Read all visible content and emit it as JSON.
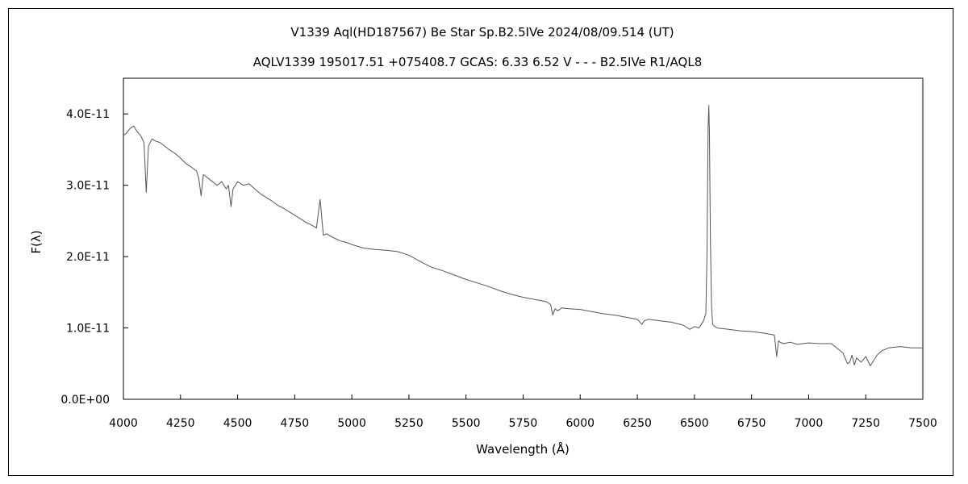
{
  "chart_data": {
    "type": "line",
    "title": "V1339 Aql(HD187567)    Be Star    Sp.B2.5IVe    2024/08/09.514 (UT)",
    "subtitle": "AQLV1339 195017.51 +075408.7 GCAS: 6.33 6.52 V - - - B2.5IVe R1/AQL8",
    "xlabel": "Wavelength (Å)",
    "ylabel": "F(λ)",
    "xlim": [
      4000,
      7500
    ],
    "ylim": [
      0,
      4.5e-11
    ],
    "x_ticks": [
      4000,
      4250,
      4500,
      4750,
      5000,
      5250,
      5500,
      5750,
      6000,
      6250,
      6500,
      6750,
      7000,
      7250,
      7500
    ],
    "x_tick_labels": [
      "4000",
      "4250",
      "4500",
      "4750",
      "5000",
      "5250",
      "5500",
      "5750",
      "6000",
      "6250",
      "6500",
      "6750",
      "7000",
      "7250",
      "7500"
    ],
    "y_ticks": [
      0,
      1e-11,
      2e-11,
      3e-11,
      4e-11
    ],
    "y_tick_labels": [
      "0.0E+00",
      "1.0E-11",
      "2.0E-11",
      "3.0E-11",
      "4.0E-11"
    ],
    "grid": false,
    "legend": "none",
    "series": [
      {
        "color": "#555555",
        "x": [
          4000,
          4010,
          4030,
          4045,
          4060,
          4075,
          4090,
          4100,
          4110,
          4125,
          4140,
          4160,
          4180,
          4200,
          4225,
          4250,
          4275,
          4300,
          4320,
          4330,
          4340,
          4350,
          4370,
          4390,
          4410,
          4430,
          4450,
          4460,
          4471,
          4480,
          4500,
          4525,
          4550,
          4575,
          4600,
          4625,
          4650,
          4675,
          4700,
          4725,
          4750,
          4775,
          4800,
          4825,
          4845,
          4855,
          4861,
          4867,
          4875,
          4890,
          4910,
          4930,
          4950,
          4975,
          5000,
          5050,
          5100,
          5150,
          5200,
          5250,
          5300,
          5350,
          5400,
          5450,
          5500,
          5550,
          5600,
          5650,
          5700,
          5750,
          5800,
          5850,
          5870,
          5880,
          5890,
          5900,
          5920,
          5950,
          6000,
          6050,
          6100,
          6150,
          6200,
          6250,
          6270,
          6280,
          6300,
          6350,
          6400,
          6450,
          6480,
          6500,
          6520,
          6540,
          6550,
          6555,
          6560,
          6563,
          6566,
          6570,
          6575,
          6580,
          6590,
          6600,
          6650,
          6700,
          6750,
          6800,
          6850,
          6860,
          6868,
          6875,
          6890,
          6920,
          6950,
          7000,
          7050,
          7100,
          7150,
          7170,
          7180,
          7190,
          7200,
          7210,
          7230,
          7250,
          7270,
          7290,
          7300,
          7320,
          7350,
          7400,
          7450,
          7500
        ],
        "y": [
          3.7e-11,
          3.72e-11,
          3.8e-11,
          3.83e-11,
          3.75e-11,
          3.7e-11,
          3.6e-11,
          2.9e-11,
          3.55e-11,
          3.65e-11,
          3.62e-11,
          3.6e-11,
          3.55e-11,
          3.5e-11,
          3.45e-11,
          3.38e-11,
          3.3e-11,
          3.25e-11,
          3.2e-11,
          3.1e-11,
          2.85e-11,
          3.15e-11,
          3.1e-11,
          3.05e-11,
          3e-11,
          3.05e-11,
          2.95e-11,
          3e-11,
          2.7e-11,
          2.95e-11,
          3.05e-11,
          3e-11,
          3.02e-11,
          2.95e-11,
          2.88e-11,
          2.83e-11,
          2.78e-11,
          2.72e-11,
          2.68e-11,
          2.63e-11,
          2.58e-11,
          2.53e-11,
          2.48e-11,
          2.44e-11,
          2.4e-11,
          2.65e-11,
          2.8e-11,
          2.6e-11,
          2.3e-11,
          2.32e-11,
          2.28e-11,
          2.25e-11,
          2.22e-11,
          2.2e-11,
          2.17e-11,
          2.12e-11,
          2.1e-11,
          2.09e-11,
          2.07e-11,
          2.02e-11,
          1.93e-11,
          1.85e-11,
          1.8e-11,
          1.74e-11,
          1.68e-11,
          1.63e-11,
          1.58e-11,
          1.52e-11,
          1.47e-11,
          1.43e-11,
          1.4e-11,
          1.37e-11,
          1.33e-11,
          1.18e-11,
          1.27e-11,
          1.24e-11,
          1.28e-11,
          1.27e-11,
          1.26e-11,
          1.23e-11,
          1.2e-11,
          1.18e-11,
          1.15e-11,
          1.12e-11,
          1.05e-11,
          1.1e-11,
          1.12e-11,
          1.1e-11,
          1.08e-11,
          1.04e-11,
          9.8e-12,
          1.02e-11,
          1e-11,
          1.1e-11,
          1.2e-11,
          2e-11,
          3.8e-11,
          4.12e-11,
          3.7e-11,
          2.2e-11,
          1.3e-11,
          1.05e-11,
          1.02e-11,
          1e-11,
          9.8e-12,
          9.6e-12,
          9.5e-12,
          9.3e-12,
          9e-12,
          6e-12,
          8.2e-12,
          8e-12,
          7.8e-12,
          8e-12,
          7.7e-12,
          7.9e-12,
          7.8e-12,
          7.8e-12,
          6.5e-12,
          5e-12,
          5.2e-12,
          6.2e-12,
          4.8e-12,
          5.8e-12,
          5.2e-12,
          6e-12,
          4.7e-12,
          5.7e-12,
          6.2e-12,
          6.8e-12,
          7.2e-12,
          7.4e-12,
          7.2e-12,
          7.2e-12
        ]
      }
    ]
  }
}
